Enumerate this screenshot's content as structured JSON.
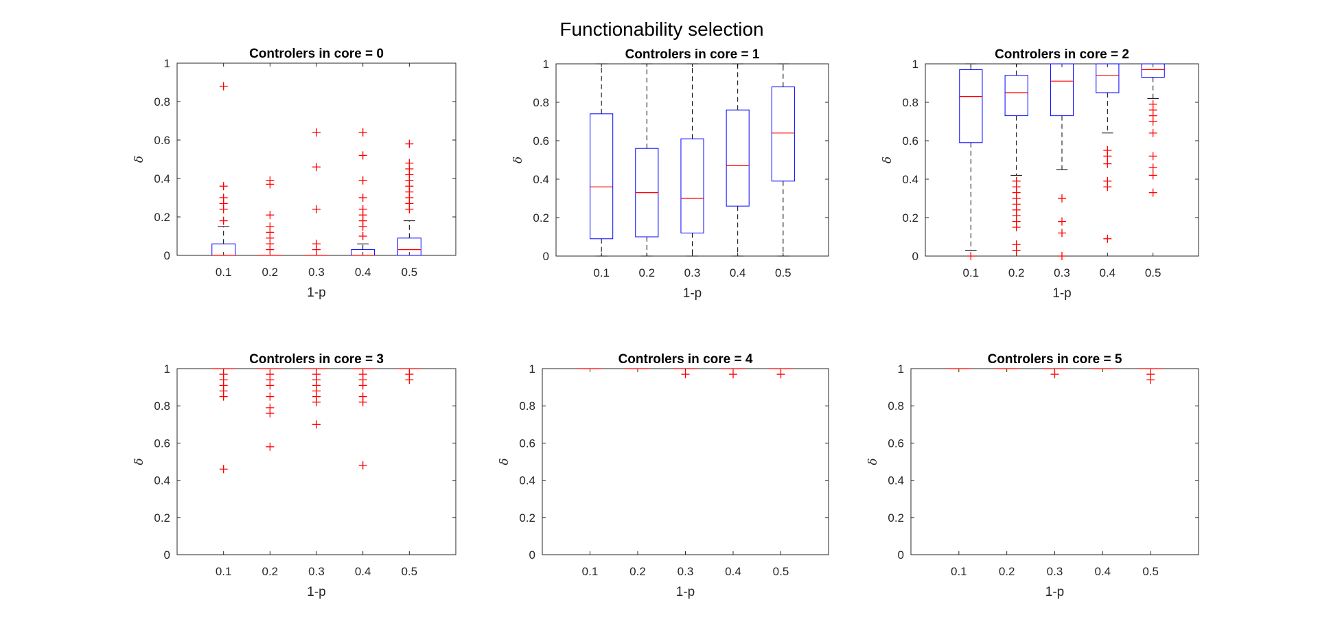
{
  "figure": {
    "title": "Functionability selection"
  },
  "colors": {
    "box": "#0000ff",
    "median": "#ff0000",
    "outlier": "#ff0000",
    "whisker": "#000000",
    "axis": "#262626"
  },
  "chart_data": [
    {
      "type": "box",
      "title": "Controlers in core = 0",
      "xlabel": "1-p",
      "ylabel": "δ",
      "categories": [
        "0.1",
        "0.2",
        "0.3",
        "0.4",
        "0.5"
      ],
      "ylim": [
        0,
        1
      ],
      "yticks": [
        "0",
        "0.2",
        "0.4",
        "0.6",
        "0.8",
        "1"
      ],
      "boxes": [
        {
          "q1": 0,
          "median": 0,
          "q3": 0.06,
          "whisker_low": 0,
          "whisker_high": 0.15,
          "outliers": [
            0.88,
            0.36,
            0.3,
            0.27,
            0.24,
            0.18
          ]
        },
        {
          "q1": 0,
          "median": 0,
          "q3": 0,
          "whisker_low": 0,
          "whisker_high": 0,
          "outliers": [
            0.39,
            0.37,
            0.21,
            0.15,
            0.12,
            0.09,
            0.06,
            0.03
          ]
        },
        {
          "q1": 0,
          "median": 0,
          "q3": 0,
          "whisker_low": 0,
          "whisker_high": 0,
          "outliers": [
            0.64,
            0.46,
            0.24,
            0.06,
            0.03
          ]
        },
        {
          "q1": 0,
          "median": 0,
          "q3": 0.03,
          "whisker_low": 0,
          "whisker_high": 0.06,
          "outliers": [
            0.64,
            0.52,
            0.39,
            0.3,
            0.24,
            0.21,
            0.18,
            0.15,
            0.1
          ]
        },
        {
          "q1": 0,
          "median": 0.03,
          "q3": 0.09,
          "whisker_low": 0,
          "whisker_high": 0.18,
          "outliers": [
            0.58,
            0.48,
            0.45,
            0.42,
            0.39,
            0.36,
            0.33,
            0.3,
            0.27,
            0.24
          ]
        }
      ]
    },
    {
      "type": "box",
      "title": "Controlers in core = 1",
      "xlabel": "1-p",
      "ylabel": "δ",
      "categories": [
        "0.1",
        "0.2",
        "0.3",
        "0.4",
        "0.5"
      ],
      "ylim": [
        0,
        1
      ],
      "yticks": [
        "0",
        "0.2",
        "0.4",
        "0.6",
        "0.8",
        "1"
      ],
      "boxes": [
        {
          "q1": 0.09,
          "median": 0.36,
          "q3": 0.74,
          "whisker_low": 0,
          "whisker_high": 1,
          "outliers": []
        },
        {
          "q1": 0.1,
          "median": 0.33,
          "q3": 0.56,
          "whisker_low": 0,
          "whisker_high": 1,
          "outliers": []
        },
        {
          "q1": 0.12,
          "median": 0.3,
          "q3": 0.61,
          "whisker_low": 0,
          "whisker_high": 1,
          "outliers": []
        },
        {
          "q1": 0.26,
          "median": 0.47,
          "q3": 0.76,
          "whisker_low": 0,
          "whisker_high": 1,
          "outliers": []
        },
        {
          "q1": 0.39,
          "median": 0.64,
          "q3": 0.88,
          "whisker_low": 0,
          "whisker_high": 1,
          "outliers": []
        }
      ]
    },
    {
      "type": "box",
      "title": "Controlers in core = 2",
      "xlabel": "1-p",
      "ylabel": "δ",
      "categories": [
        "0.1",
        "0.2",
        "0.3",
        "0.4",
        "0.5"
      ],
      "ylim": [
        0,
        1
      ],
      "yticks": [
        "0",
        "0.2",
        "0.4",
        "0.6",
        "0.8",
        "1"
      ],
      "boxes": [
        {
          "q1": 0.59,
          "median": 0.83,
          "q3": 0.97,
          "whisker_low": 0.03,
          "whisker_high": 1,
          "outliers": [
            0
          ]
        },
        {
          "q1": 0.73,
          "median": 0.85,
          "q3": 0.94,
          "whisker_low": 0.42,
          "whisker_high": 1,
          "outliers": [
            0.39,
            0.36,
            0.33,
            0.3,
            0.27,
            0.24,
            0.21,
            0.18,
            0.15,
            0.06,
            0.03
          ]
        },
        {
          "q1": 0.73,
          "median": 0.91,
          "q3": 1,
          "whisker_low": 0.45,
          "whisker_high": 1,
          "outliers": [
            0.3,
            0.18,
            0.12,
            0
          ]
        },
        {
          "q1": 0.85,
          "median": 0.94,
          "q3": 1,
          "whisker_low": 0.64,
          "whisker_high": 1,
          "outliers": [
            0.55,
            0.52,
            0.48,
            0.39,
            0.36,
            0.09
          ]
        },
        {
          "q1": 0.93,
          "median": 0.97,
          "q3": 1,
          "whisker_low": 0.82,
          "whisker_high": 1,
          "outliers": [
            0.79,
            0.76,
            0.73,
            0.7,
            0.64,
            0.52,
            0.46,
            0.42,
            0.33
          ]
        }
      ]
    },
    {
      "type": "box",
      "title": "Controlers in core = 3",
      "xlabel": "1-p",
      "ylabel": "δ",
      "categories": [
        "0.1",
        "0.2",
        "0.3",
        "0.4",
        "0.5"
      ],
      "ylim": [
        0,
        1
      ],
      "yticks": [
        "0",
        "0.2",
        "0.4",
        "0.6",
        "0.8",
        "1"
      ],
      "boxes": [
        {
          "q1": 1,
          "median": 1,
          "q3": 1,
          "whisker_low": 1,
          "whisker_high": 1,
          "outliers": [
            0.97,
            0.94,
            0.91,
            0.88,
            0.85,
            0.46
          ]
        },
        {
          "q1": 1,
          "median": 1,
          "q3": 1,
          "whisker_low": 1,
          "whisker_high": 1,
          "outliers": [
            0.97,
            0.94,
            0.91,
            0.85,
            0.79,
            0.76,
            0.58
          ]
        },
        {
          "q1": 1,
          "median": 1,
          "q3": 1,
          "whisker_low": 1,
          "whisker_high": 1,
          "outliers": [
            0.97,
            0.94,
            0.91,
            0.88,
            0.85,
            0.82,
            0.7
          ]
        },
        {
          "q1": 1,
          "median": 1,
          "q3": 1,
          "whisker_low": 1,
          "whisker_high": 1,
          "outliers": [
            0.97,
            0.94,
            0.91,
            0.85,
            0.82,
            0.48
          ]
        },
        {
          "q1": 1,
          "median": 1,
          "q3": 1,
          "whisker_low": 1,
          "whisker_high": 1,
          "outliers": [
            0.97,
            0.94
          ]
        }
      ]
    },
    {
      "type": "box",
      "title": "Controlers in core = 4",
      "xlabel": "1-p",
      "ylabel": "δ",
      "categories": [
        "0.1",
        "0.2",
        "0.3",
        "0.4",
        "0.5"
      ],
      "ylim": [
        0,
        1
      ],
      "yticks": [
        "0",
        "0.2",
        "0.4",
        "0.6",
        "0.8",
        "1"
      ],
      "boxes": [
        {
          "q1": 1,
          "median": 1,
          "q3": 1,
          "whisker_low": 1,
          "whisker_high": 1,
          "outliers": []
        },
        {
          "q1": 1,
          "median": 1,
          "q3": 1,
          "whisker_low": 1,
          "whisker_high": 1,
          "outliers": []
        },
        {
          "q1": 1,
          "median": 1,
          "q3": 1,
          "whisker_low": 1,
          "whisker_high": 1,
          "outliers": [
            0.97
          ]
        },
        {
          "q1": 1,
          "median": 1,
          "q3": 1,
          "whisker_low": 1,
          "whisker_high": 1,
          "outliers": [
            0.97
          ]
        },
        {
          "q1": 1,
          "median": 1,
          "q3": 1,
          "whisker_low": 1,
          "whisker_high": 1,
          "outliers": [
            0.97
          ]
        }
      ]
    },
    {
      "type": "box",
      "title": "Controlers in core = 5",
      "xlabel": "1-p",
      "ylabel": "δ",
      "categories": [
        "0.1",
        "0.2",
        "0.3",
        "0.4",
        "0.5"
      ],
      "ylim": [
        0,
        1
      ],
      "yticks": [
        "0",
        "0.2",
        "0.4",
        "0.6",
        "0.8",
        "1"
      ],
      "boxes": [
        {
          "q1": 1,
          "median": 1,
          "q3": 1,
          "whisker_low": 1,
          "whisker_high": 1,
          "outliers": []
        },
        {
          "q1": 1,
          "median": 1,
          "q3": 1,
          "whisker_low": 1,
          "whisker_high": 1,
          "outliers": []
        },
        {
          "q1": 1,
          "median": 1,
          "q3": 1,
          "whisker_low": 1,
          "whisker_high": 1,
          "outliers": [
            0.97
          ]
        },
        {
          "q1": 1,
          "median": 1,
          "q3": 1,
          "whisker_low": 1,
          "whisker_high": 1,
          "outliers": []
        },
        {
          "q1": 1,
          "median": 1,
          "q3": 1,
          "whisker_low": 1,
          "whisker_high": 1,
          "outliers": [
            0.97,
            0.94
          ]
        }
      ]
    }
  ]
}
